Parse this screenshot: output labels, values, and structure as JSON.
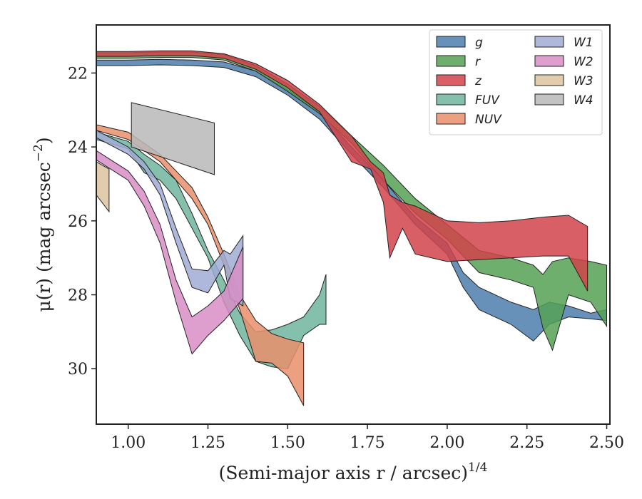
{
  "chart_data": {
    "type": "area",
    "xlabel": "(Semi-major axis r / arcsec)",
    "xlabel_exponent": "1/4",
    "ylabel": "μ(r) (mag arcsec",
    "ylabel_exponent": "−2",
    "ylabel_close": ")",
    "xlim": [
      0.9,
      2.51
    ],
    "ylim": [
      31.5,
      20.7
    ],
    "y_inverted": true,
    "grid": false,
    "legend_position": "top-right",
    "legend_columns": 2,
    "x_ticks": [
      {
        "value": 1.0,
        "label": "1.00"
      },
      {
        "value": 1.25,
        "label": "1.25"
      },
      {
        "value": 1.5,
        "label": "1.50"
      },
      {
        "value": 1.75,
        "label": "1.75"
      },
      {
        "value": 2.0,
        "label": "2.00"
      },
      {
        "value": 2.25,
        "label": "2.25"
      },
      {
        "value": 2.5,
        "label": "2.50"
      }
    ],
    "y_ticks": [
      {
        "value": 22,
        "label": "22"
      },
      {
        "value": 24,
        "label": "24"
      },
      {
        "value": 26,
        "label": "26"
      },
      {
        "value": 28,
        "label": "28"
      },
      {
        "value": 30,
        "label": "30"
      }
    ],
    "series": [
      {
        "name": "g",
        "color": "#4c7eac",
        "band": [
          [
            0.9,
            21.65,
            21.8
          ],
          [
            1.0,
            21.65,
            21.8
          ],
          [
            1.1,
            21.63,
            21.78
          ],
          [
            1.2,
            21.65,
            21.8
          ],
          [
            1.3,
            21.7,
            21.85
          ],
          [
            1.4,
            21.95,
            22.1
          ],
          [
            1.5,
            22.45,
            22.6
          ],
          [
            1.6,
            23.05,
            23.25
          ],
          [
            1.7,
            24.0,
            24.2
          ],
          [
            1.8,
            24.9,
            25.1
          ],
          [
            1.9,
            25.9,
            26.1
          ],
          [
            2.0,
            26.6,
            26.9
          ],
          [
            2.05,
            27.4,
            27.8
          ],
          [
            2.1,
            27.8,
            28.4
          ],
          [
            2.2,
            28.2,
            28.8
          ],
          [
            2.27,
            28.4,
            29.25
          ],
          [
            2.32,
            28.2,
            28.8
          ],
          [
            2.38,
            28.3,
            28.6
          ],
          [
            2.45,
            28.5,
            28.65
          ],
          [
            2.5,
            28.4,
            28.7
          ]
        ]
      },
      {
        "name": "r",
        "color": "#55a155",
        "band": [
          [
            0.9,
            21.45,
            21.6
          ],
          [
            1.0,
            21.45,
            21.6
          ],
          [
            1.1,
            21.43,
            21.58
          ],
          [
            1.2,
            21.43,
            21.58
          ],
          [
            1.3,
            21.5,
            21.65
          ],
          [
            1.4,
            21.8,
            21.95
          ],
          [
            1.5,
            22.3,
            22.5
          ],
          [
            1.6,
            22.9,
            23.1
          ],
          [
            1.7,
            23.7,
            23.9
          ],
          [
            1.8,
            24.5,
            24.9
          ],
          [
            1.9,
            25.4,
            25.8
          ],
          [
            2.0,
            26.1,
            26.5
          ],
          [
            2.1,
            26.8,
            27.4
          ],
          [
            2.2,
            27.0,
            27.6
          ],
          [
            2.27,
            27.2,
            27.8
          ],
          [
            2.3,
            27.45,
            28.9
          ],
          [
            2.33,
            27.1,
            29.5
          ],
          [
            2.38,
            27.0,
            28.0
          ],
          [
            2.45,
            27.1,
            28.2
          ],
          [
            2.5,
            27.2,
            28.85
          ]
        ]
      },
      {
        "name": "z",
        "color": "#d1434a",
        "band": [
          [
            0.9,
            21.42,
            21.55
          ],
          [
            1.0,
            21.42,
            21.55
          ],
          [
            1.1,
            21.4,
            21.53
          ],
          [
            1.2,
            21.4,
            21.53
          ],
          [
            1.3,
            21.48,
            21.6
          ],
          [
            1.4,
            21.75,
            21.9
          ],
          [
            1.5,
            22.2,
            22.4
          ],
          [
            1.6,
            22.85,
            23.05
          ],
          [
            1.7,
            23.7,
            24.4
          ],
          [
            1.76,
            24.4,
            24.6
          ],
          [
            1.8,
            24.7,
            25.5
          ],
          [
            1.82,
            25.3,
            27.0
          ],
          [
            1.86,
            25.5,
            26.2
          ],
          [
            1.9,
            25.6,
            26.9
          ],
          [
            2.0,
            26.0,
            27.1
          ],
          [
            2.1,
            26.05,
            27.05
          ],
          [
            2.2,
            26.0,
            27.0
          ],
          [
            2.3,
            25.9,
            26.95
          ],
          [
            2.38,
            25.85,
            26.95
          ],
          [
            2.44,
            26.15,
            27.9
          ]
        ]
      },
      {
        "name": "FUV",
        "color": "#6fb59d",
        "band": [
          [
            0.9,
            23.6,
            23.8
          ],
          [
            1.0,
            23.85,
            24.05
          ],
          [
            1.05,
            24.2,
            24.7
          ],
          [
            1.1,
            24.5,
            24.9
          ],
          [
            1.15,
            24.9,
            25.4
          ],
          [
            1.2,
            25.8,
            26.2
          ],
          [
            1.25,
            26.8,
            27.0
          ],
          [
            1.3,
            27.6,
            28.2
          ],
          [
            1.35,
            28.5,
            29.1
          ],
          [
            1.4,
            29.0,
            29.8
          ],
          [
            1.45,
            28.95,
            29.95
          ],
          [
            1.5,
            28.8,
            30.0
          ],
          [
            1.55,
            28.6,
            29.1
          ],
          [
            1.6,
            28.0,
            28.8
          ],
          [
            1.62,
            27.45,
            28.8
          ]
        ]
      },
      {
        "name": "NUV",
        "color": "#e98f6b",
        "band": [
          [
            0.9,
            23.4,
            23.55
          ],
          [
            1.0,
            23.6,
            23.8
          ],
          [
            1.1,
            24.2,
            24.4
          ],
          [
            1.2,
            25.1,
            25.4
          ],
          [
            1.25,
            25.9,
            26.1
          ],
          [
            1.3,
            26.9,
            27.2
          ],
          [
            1.35,
            28.0,
            28.4
          ],
          [
            1.4,
            28.7,
            29.8
          ],
          [
            1.45,
            29.05,
            29.85
          ],
          [
            1.5,
            29.2,
            30.2
          ],
          [
            1.55,
            29.3,
            31.0
          ]
        ]
      },
      {
        "name": "W1",
        "color": "#9fabd4",
        "band": [
          [
            0.9,
            23.55,
            23.75
          ],
          [
            1.0,
            24.0,
            24.2
          ],
          [
            1.05,
            24.4,
            24.6
          ],
          [
            1.1,
            25.0,
            25.3
          ],
          [
            1.15,
            26.2,
            26.6
          ],
          [
            1.2,
            27.3,
            27.8
          ],
          [
            1.25,
            27.35,
            27.95
          ],
          [
            1.3,
            26.8,
            27.2
          ],
          [
            1.32,
            26.9,
            28.1
          ],
          [
            1.36,
            26.4,
            28.3
          ]
        ]
      },
      {
        "name": "W2",
        "color": "#d88ec7",
        "band": [
          [
            0.9,
            24.1,
            24.35
          ],
          [
            1.0,
            24.65,
            24.9
          ],
          [
            1.05,
            25.2,
            25.6
          ],
          [
            1.1,
            26.1,
            26.6
          ],
          [
            1.15,
            27.6,
            28.2
          ],
          [
            1.2,
            28.6,
            29.6
          ],
          [
            1.25,
            28.3,
            29.1
          ],
          [
            1.3,
            27.9,
            28.7
          ],
          [
            1.36,
            26.7,
            28.1
          ]
        ]
      },
      {
        "name": "W3",
        "color": "#dcc4a0",
        "band": [
          [
            0.9,
            24.4,
            25.3
          ],
          [
            0.94,
            24.6,
            25.75
          ]
        ]
      },
      {
        "name": "W4",
        "color": "#b8b8b8",
        "band": [
          [
            1.01,
            22.8,
            24.0
          ],
          [
            1.27,
            23.35,
            24.75
          ]
        ]
      }
    ]
  }
}
